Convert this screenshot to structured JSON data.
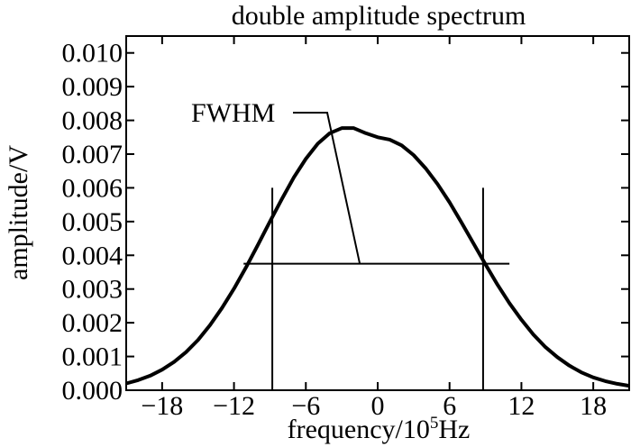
{
  "chart_data": {
    "type": "line",
    "title": "double amplitude spectrum",
    "xlabel_main": "frequency/10",
    "xlabel_sup": "5",
    "xlabel_tail": "Hz",
    "ylabel": "amplitude/V",
    "xlim": [
      -21,
      21
    ],
    "ylim": [
      0,
      0.0105
    ],
    "xticks": [
      -18,
      -12,
      -6,
      0,
      6,
      12,
      18
    ],
    "xtick_labels": [
      "−18",
      "−12",
      "−6",
      "0",
      "6",
      "12",
      "18"
    ],
    "yticks": [
      0.0,
      0.001,
      0.002,
      0.003,
      0.004,
      0.005,
      0.006,
      0.007,
      0.008,
      0.009,
      0.01
    ],
    "ytick_labels": [
      "0.000",
      "0.001",
      "0.002",
      "0.003",
      "0.004",
      "0.005",
      "0.006",
      "0.007",
      "0.008",
      "0.009",
      "0.010"
    ],
    "series": [
      {
        "x": [
          -21,
          -20,
          -19,
          -18,
          -17,
          -16,
          -15,
          -14,
          -13,
          -12,
          -11,
          -10,
          -9,
          -8,
          -7,
          -6,
          -5,
          -4,
          -3,
          -2,
          -1,
          0,
          1,
          2,
          3,
          4,
          5,
          6,
          7,
          8,
          9,
          10,
          11,
          12,
          13,
          14,
          15,
          16,
          17,
          18,
          19,
          20,
          21
        ],
        "y": [
          0.0002,
          0.0003,
          0.00043,
          0.00061,
          0.00084,
          0.00113,
          0.00149,
          0.00193,
          0.00244,
          0.00301,
          0.00364,
          0.00431,
          0.005,
          0.00567,
          0.00631,
          0.00686,
          0.00731,
          0.00762,
          0.00777,
          0.00777,
          0.00762,
          0.0075,
          0.00743,
          0.00726,
          0.00697,
          0.00658,
          0.00611,
          0.00557,
          0.00497,
          0.00435,
          0.00373,
          0.00313,
          0.00258,
          0.00209,
          0.00165,
          0.00128,
          0.00098,
          0.00073,
          0.00053,
          0.00038,
          0.00027,
          0.00019,
          0.00013
        ]
      }
    ],
    "annotation": {
      "text": "FWHM",
      "fwhm_level": 0.00375,
      "line_x_range": [
        -11.2,
        11.0
      ],
      "left_marker_x": -8.8,
      "right_marker_x": 8.8,
      "marker_y_range": [
        0,
        0.006
      ],
      "leader_end_x": -1.5
    },
    "grid": false
  }
}
